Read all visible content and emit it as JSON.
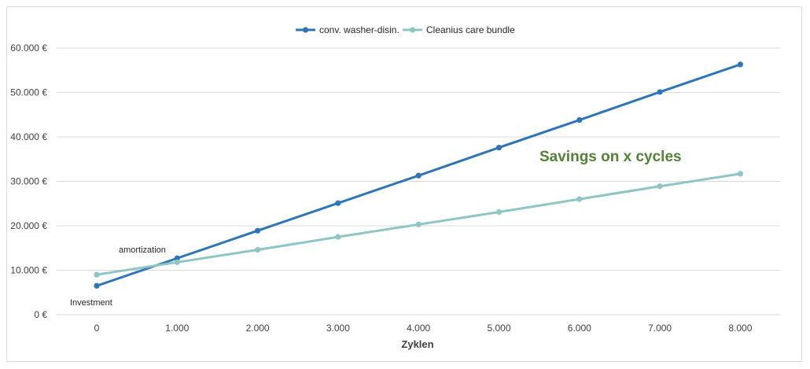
{
  "chart_data": {
    "type": "line",
    "title": "",
    "xlabel": "Zyklen",
    "ylabel": "",
    "categories": [
      "0",
      "1.000",
      "2.000",
      "3.000",
      "4.000",
      "5.000",
      "6.000",
      "7.000",
      "8.000"
    ],
    "x": [
      0,
      1000,
      2000,
      3000,
      4000,
      5000,
      6000,
      7000,
      8000
    ],
    "ylim": [
      0,
      60000
    ],
    "yticks": [
      0,
      10000,
      20000,
      30000,
      40000,
      50000,
      60000
    ],
    "ytick_labels": [
      "0 €",
      "10.000 €",
      "20.000 €",
      "30.000 €",
      "40.000 €",
      "50.000 €",
      "60.000 €"
    ],
    "grid": true,
    "legend_position": "top-center",
    "series": [
      {
        "name": "conv. washer-disin.",
        "color": "#2e75b6",
        "values": [
          6500,
          12700,
          18900,
          25100,
          31300,
          37600,
          43800,
          50100,
          56300
        ]
      },
      {
        "name": "Cleanius care bundle",
        "color": "#8fc5c5",
        "values": [
          9000,
          11800,
          14600,
          17500,
          20300,
          23100,
          26000,
          28900,
          31700
        ]
      }
    ],
    "annotations": {
      "investment": "Investment",
      "amortization": "amortization",
      "savings": "Savings on x cycles"
    }
  }
}
